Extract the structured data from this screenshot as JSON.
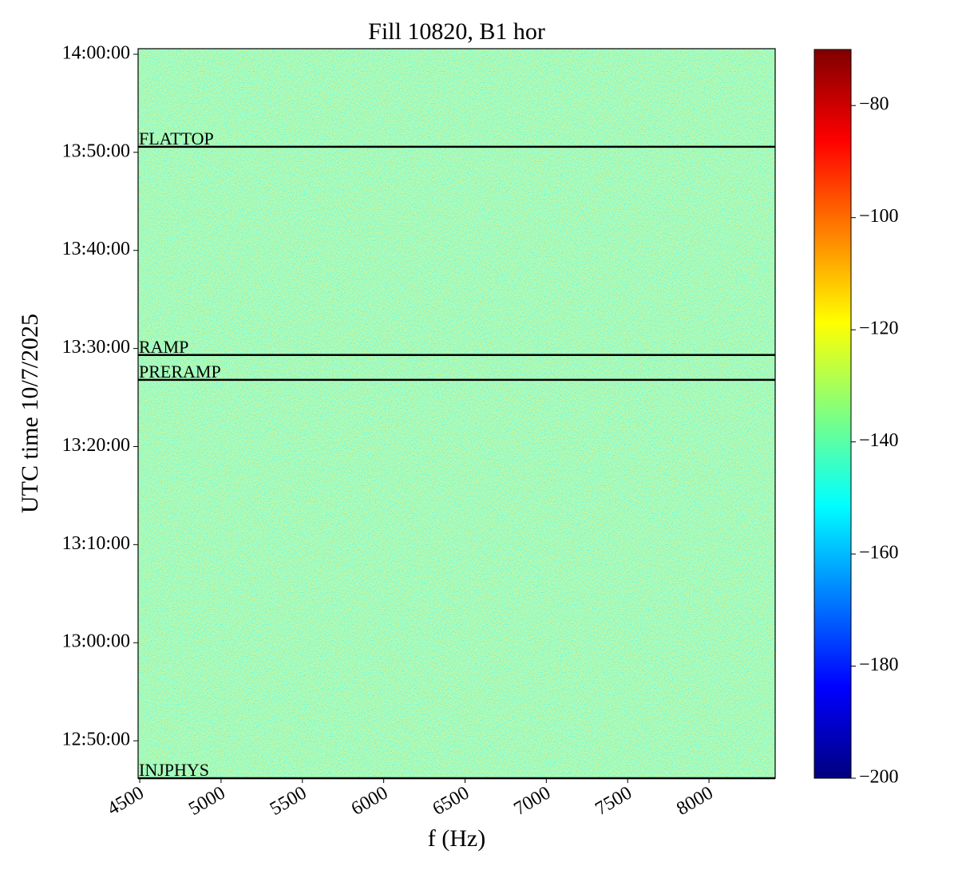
{
  "chart_data": {
    "type": "spectrogram",
    "title": "Fill 10820, B1 hor",
    "xlabel": "f (Hz)",
    "ylabel": "UTC time 10/7/2025",
    "xlim": [
      4490,
      8407
    ],
    "xticks": [
      4500,
      5000,
      5500,
      6000,
      6500,
      7000,
      7500,
      8000
    ],
    "ylim": [
      45971,
      50434
    ],
    "yticks": [
      {
        "value": 46200,
        "label": "12:50:00"
      },
      {
        "value": 46800,
        "label": "13:00:00"
      },
      {
        "value": 47400,
        "label": "13:10:00"
      },
      {
        "value": 48000,
        "label": "13:20:00"
      },
      {
        "value": 48600,
        "label": "13:30:00"
      },
      {
        "value": 49200,
        "label": "13:40:00"
      },
      {
        "value": 49800,
        "label": "13:50:00"
      },
      {
        "value": 50400,
        "label": "14:00:00"
      }
    ],
    "events": [
      {
        "label": "FLATTOP",
        "y": 49834
      },
      {
        "label": "RAMP",
        "y": 48560
      },
      {
        "label": "PRERAMP",
        "y": 48408
      },
      {
        "label": "INJPHYS",
        "y": 45971
      }
    ],
    "colorbar": {
      "colormap": "jet",
      "lim": [
        -200,
        -70
      ],
      "ticks": [
        {
          "value": -200,
          "label": "−200"
        },
        {
          "value": -180,
          "label": "−180"
        },
        {
          "value": -160,
          "label": "−160"
        },
        {
          "value": -140,
          "label": "−140"
        },
        {
          "value": -120,
          "label": "−120"
        },
        {
          "value": -100,
          "label": "−100"
        },
        {
          "value": -80,
          "label": "−80"
        }
      ]
    }
  }
}
